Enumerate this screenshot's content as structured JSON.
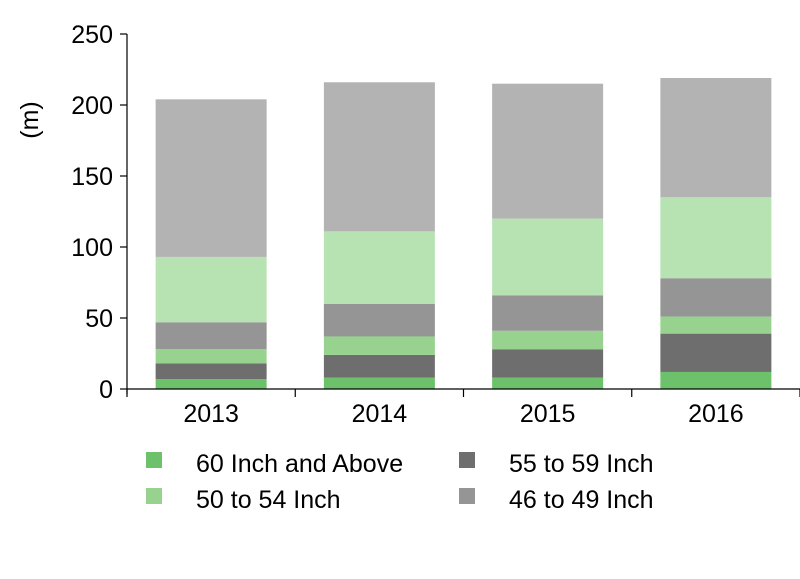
{
  "chart_data": {
    "type": "bar",
    "stacked": true,
    "title": "",
    "xlabel": "",
    "ylabel": "(m)",
    "ylim": [
      0,
      250
    ],
    "yticks": [
      0,
      50,
      100,
      150,
      200,
      250
    ],
    "grid": false,
    "legend_position": "bottom",
    "categories": [
      "2013",
      "2014",
      "2015",
      "2016"
    ],
    "series": [
      {
        "name": "60 Inch and Above",
        "color": "#6cc16a",
        "values": [
          7,
          8,
          8,
          12
        ]
      },
      {
        "name": "55 to 59 Inch",
        "color": "#6e6e6e",
        "values": [
          11,
          16,
          20,
          27
        ]
      },
      {
        "name": "50 to 54 Inch",
        "color": "#97d38f",
        "values": [
          10,
          13,
          13,
          12
        ]
      },
      {
        "name": "46 to 49 Inch",
        "color": "#959595",
        "values": [
          19,
          23,
          25,
          27
        ]
      },
      {
        "name": "",
        "color": "#b7e3b3",
        "values": [
          46,
          51,
          54,
          57
        ]
      },
      {
        "name": "",
        "color": "#b3b3b3",
        "values": [
          111,
          105,
          95,
          84
        ]
      }
    ],
    "legend": [
      {
        "label": "60 Inch and Above",
        "color": "#6cc16a"
      },
      {
        "label": "55 to 59 Inch",
        "color": "#6e6e6e"
      },
      {
        "label": "50 to 54 Inch",
        "color": "#97d38f"
      },
      {
        "label": "46 to 49 Inch",
        "color": "#959595"
      }
    ]
  }
}
